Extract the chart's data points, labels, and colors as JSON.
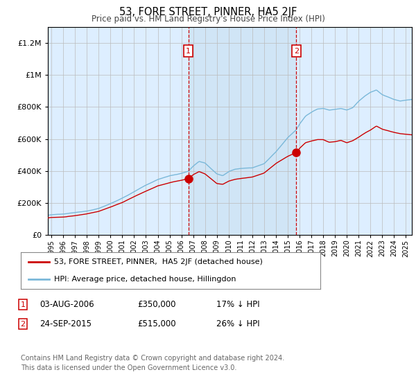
{
  "title": "53, FORE STREET, PINNER, HA5 2JF",
  "subtitle": "Price paid vs. HM Land Registry's House Price Index (HPI)",
  "legend_line1": "53, FORE STREET, PINNER,  HA5 2JF (detached house)",
  "legend_line2": "HPI: Average price, detached house, Hillingdon",
  "footer": "Contains HM Land Registry data © Crown copyright and database right 2024.\nThis data is licensed under the Open Government Licence v3.0.",
  "hpi_color": "#7ab8d9",
  "sale_color": "#cc0000",
  "background_color": "#ddeeff",
  "ylim": [
    0,
    1300000
  ],
  "xlim_start": 1994.7,
  "xlim_end": 2025.5,
  "sale1_t": 2006.586,
  "sale1_price": 350000,
  "sale2_t": 2015.731,
  "sale2_price": 515000,
  "note1_date": "03-AUG-2006",
  "note1_price": "£350,000",
  "note1_hpi": "17% ↓ HPI",
  "note2_date": "24-SEP-2015",
  "note2_price": "£515,000",
  "note2_hpi": "26% ↓ HPI"
}
